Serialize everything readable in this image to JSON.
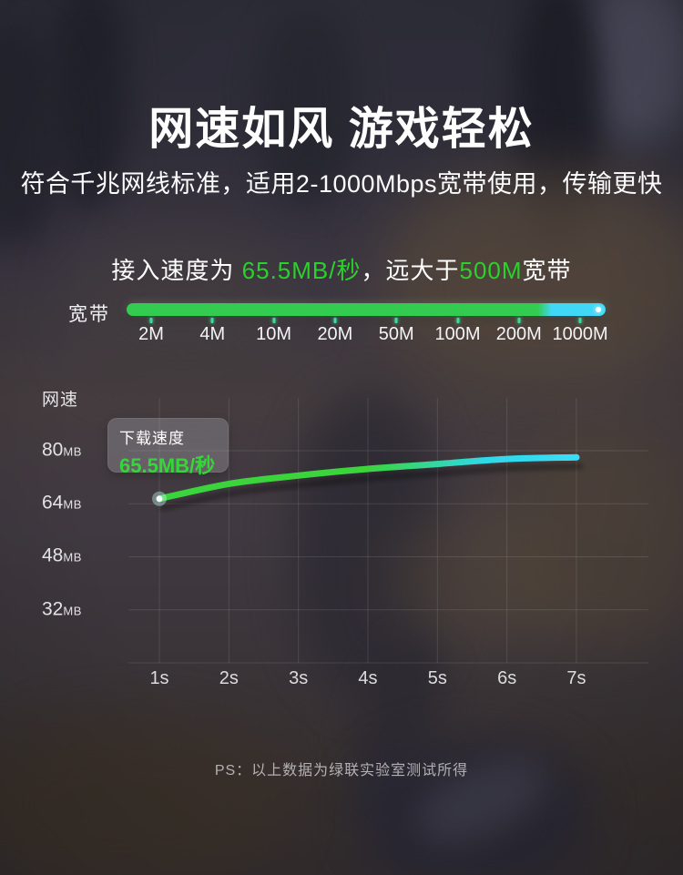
{
  "hero": {
    "title": "网速如风 游戏轻松",
    "subtitle": "符合千兆网线标准，适用2-1000Mbps宽带使用，传输更快",
    "speed_sentence": {
      "prefix": "接入速度为 ",
      "speed": "65.5MB/秒",
      "middle": "，远大于",
      "bandwidth": "500M",
      "suffix": "宽带"
    }
  },
  "bandwidth_scale": {
    "label": "宽带",
    "tick_labels": [
      "2M",
      "4M",
      "10M",
      "20M",
      "50M",
      "100M",
      "200M",
      "1000M"
    ],
    "highlight_fraction": 0.873,
    "bar_colors": {
      "reached": "#33cb50",
      "remaining": "#41d8f8"
    },
    "tick_color": "#33e095"
  },
  "chart_data": {
    "type": "line",
    "title": "网速",
    "x": [
      1,
      2,
      3,
      4,
      5,
      6,
      7
    ],
    "x_tick_labels": [
      "1s",
      "2s",
      "3s",
      "4s",
      "5s",
      "6s",
      "7s"
    ],
    "y_tick_labels": [
      "80MB",
      "64MB",
      "48MB",
      "32MB"
    ],
    "y_tick_values": [
      80,
      64,
      48,
      32
    ],
    "y_grid_values": [
      80,
      64,
      48,
      32,
      16
    ],
    "y_unit": "MB",
    "x_unit": "s",
    "ylim": [
      16,
      88
    ],
    "grid": true,
    "legend_position": "none",
    "series": [
      {
        "name": "下载速度",
        "values": [
          65.5,
          70,
          72.5,
          74.5,
          76,
          77.5,
          78
        ],
        "gradient": [
          "#3bd43c",
          "#2fd9e9",
          "#3addf6"
        ]
      }
    ],
    "annotation": {
      "label": "下载速度",
      "value": "65.5MB/秒"
    }
  },
  "footer": {
    "note": "PS：以上数据为绿联实验室测试所得"
  },
  "colors": {
    "accent_green": "#2bd12b",
    "accent_cyan": "#41d8f8",
    "text_primary": "#ffffff",
    "text_muted": "#b3b0b3"
  }
}
